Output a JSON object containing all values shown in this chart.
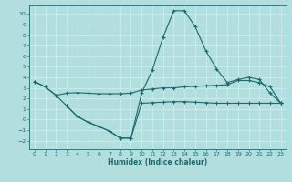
{
  "xlabel": "Humidex (Indice chaleur)",
  "background_color": "#b2dede",
  "grid_color": "#c8ecec",
  "line_color": "#1a6b6b",
  "xlim": [
    -0.5,
    23.5
  ],
  "ylim": [
    -2.8,
    10.8
  ],
  "xticks": [
    0,
    1,
    2,
    3,
    4,
    5,
    6,
    7,
    8,
    9,
    10,
    11,
    12,
    13,
    14,
    15,
    16,
    17,
    18,
    19,
    20,
    21,
    22,
    23
  ],
  "yticks": [
    -2,
    -1,
    0,
    1,
    2,
    3,
    4,
    5,
    6,
    7,
    8,
    9,
    10
  ],
  "curve1_x": [
    0,
    1,
    2,
    3,
    4,
    5,
    6,
    7,
    8,
    9,
    10,
    11,
    12,
    13,
    14,
    15,
    16,
    17,
    18,
    19,
    20,
    21,
    22,
    23
  ],
  "curve1_y": [
    3.6,
    3.1,
    2.3,
    2.5,
    2.55,
    2.5,
    2.45,
    2.45,
    2.45,
    2.5,
    2.8,
    2.9,
    3.0,
    3.0,
    3.1,
    3.15,
    3.2,
    3.25,
    3.3,
    3.7,
    3.7,
    3.5,
    3.1,
    1.55
  ],
  "curve2_x": [
    0,
    1,
    2,
    3,
    4,
    5,
    6,
    7,
    8,
    9,
    10,
    11,
    12,
    13,
    14,
    15,
    16,
    17,
    18,
    19,
    20,
    21,
    22,
    23
  ],
  "curve2_y": [
    3.6,
    3.1,
    2.3,
    1.3,
    0.3,
    -0.25,
    -0.65,
    -1.1,
    -1.75,
    -1.75,
    2.5,
    4.7,
    7.8,
    10.3,
    10.3,
    8.8,
    6.5,
    4.8,
    3.5,
    3.8,
    4.0,
    3.8,
    2.5,
    1.55
  ],
  "curve3_x": [
    3,
    4,
    5,
    6,
    7,
    8,
    9,
    10,
    11,
    12,
    13,
    14,
    15,
    16,
    17,
    18,
    19,
    20,
    21,
    22,
    23
  ],
  "curve3_y": [
    1.3,
    0.3,
    -0.25,
    -0.65,
    -1.1,
    -1.75,
    -1.75,
    1.55,
    1.6,
    1.65,
    1.7,
    1.7,
    1.65,
    1.6,
    1.55,
    1.55,
    1.55,
    1.55,
    1.55,
    1.55,
    1.55
  ]
}
